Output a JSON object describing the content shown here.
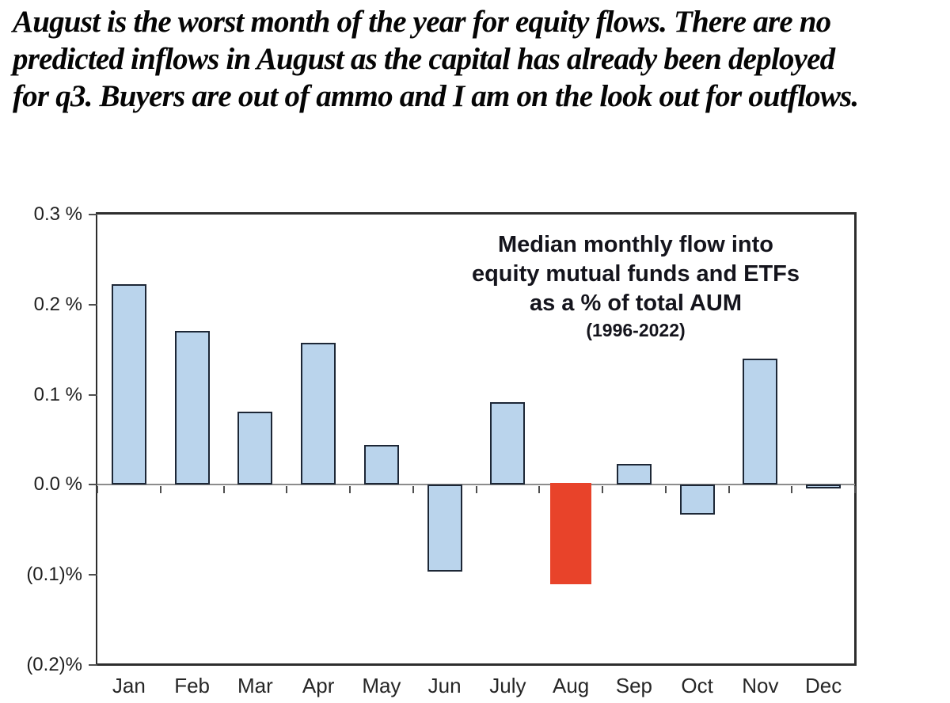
{
  "headline": {
    "lines": [
      "August is the worst month of the year for equity flows. There are no",
      "predicted inflows in August as the capital has already been deployed",
      "for q3. Buyers are out of ammo and I am on the look out for outflows."
    ]
  },
  "chart_data": {
    "type": "bar",
    "title": "Median monthly flow into equity mutual funds and ETFs as a % of total AUM",
    "subtitle": "(1996-2022)",
    "title_lines": [
      "Median monthly flow into",
      "equity mutual funds and ETFs",
      "as a % of total AUM",
      "(1996-2022)"
    ],
    "categories": [
      "Jan",
      "Feb",
      "Mar",
      "Apr",
      "May",
      "Jun",
      "July",
      "Aug",
      "Sep",
      "Oct",
      "Nov",
      "Dec"
    ],
    "values": [
      0.223,
      0.171,
      0.081,
      0.158,
      0.044,
      -0.096,
      0.092,
      -0.11,
      0.023,
      -0.033,
      0.14,
      -0.004
    ],
    "unit": "% of total AUM",
    "xlabel": "",
    "ylabel": "",
    "ylim": [
      -0.2,
      0.3
    ],
    "yticks": [
      {
        "value": 0.3,
        "label": "0.3 %"
      },
      {
        "value": 0.2,
        "label": "0.2 %"
      },
      {
        "value": 0.1,
        "label": "0.1 %"
      },
      {
        "value": 0.0,
        "label": "0.0 %"
      },
      {
        "value": -0.1,
        "label": "(0.1)%"
      },
      {
        "value": -0.2,
        "label": "(0.2)%"
      }
    ],
    "grid": false,
    "legend_position": "none",
    "highlight_month": "Aug",
    "colors": {
      "bar_fill": "#bad4ec",
      "bar_border": "#1d2736",
      "highlight_fill": "#e8432a",
      "zero_line": "#8c8c8c",
      "frame": "#2d2d2d",
      "tick": "#4f4f4f",
      "label": "#1f1f1f",
      "title": "#14141c",
      "headline": "#050505"
    }
  }
}
